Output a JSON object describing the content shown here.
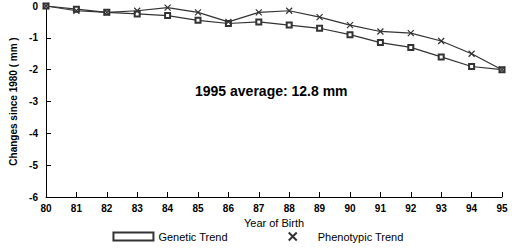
{
  "chart_data": {
    "type": "line",
    "x_label": "Year of Birth",
    "y_label": "Changes since 1980 ( mm )",
    "annotation": "1995 average: 12.8 mm",
    "x": [
      80,
      81,
      82,
      83,
      84,
      85,
      86,
      87,
      88,
      89,
      90,
      91,
      92,
      93,
      94,
      95
    ],
    "series": [
      {
        "name": "Genetic Trend",
        "color": "#333333",
        "marker": "square",
        "line_style": "solid",
        "values": [
          0,
          -0.1,
          -0.2,
          -0.25,
          -0.3,
          -0.45,
          -0.55,
          -0.5,
          -0.6,
          -0.7,
          -0.9,
          -1.15,
          -1.3,
          -1.6,
          -1.9,
          -2.0
        ]
      },
      {
        "name": "Phenotypic Trend",
        "color": "#333333",
        "marker": "x",
        "line_style": "solid",
        "values": [
          0,
          -0.15,
          -0.2,
          -0.15,
          -0.05,
          -0.2,
          -0.5,
          -0.2,
          -0.15,
          -0.35,
          -0.6,
          -0.8,
          -0.85,
          -1.1,
          -1.5,
          -2.0
        ]
      }
    ],
    "xlim": [
      80,
      95
    ],
    "xticks": [
      80,
      81,
      82,
      83,
      84,
      85,
      86,
      87,
      88,
      89,
      90,
      91,
      92,
      93,
      94,
      95
    ],
    "ylim": [
      -6,
      0
    ],
    "yticks": [
      -6,
      -5,
      -4,
      -3,
      -2,
      -1,
      0
    ],
    "grid": false,
    "legend": "bottom"
  }
}
